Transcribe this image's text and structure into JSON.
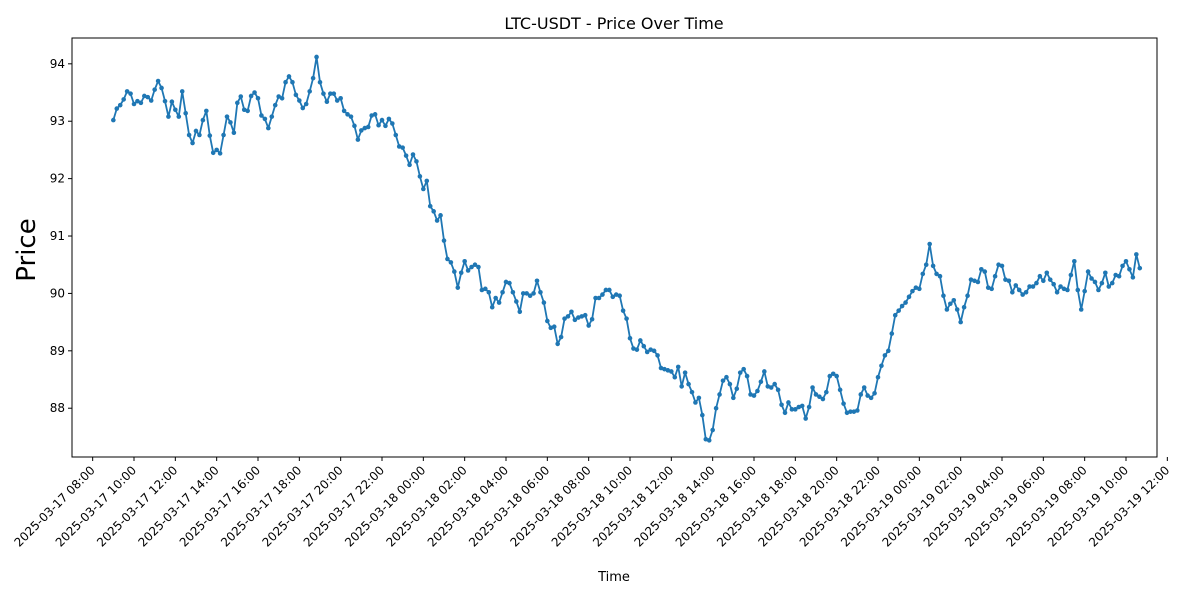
{
  "chart_data": {
    "type": "line",
    "title": "LTC-USDT - Price Over Time",
    "xlabel": "Time",
    "ylabel": "Price",
    "x_start": "2025-03-17 09:00",
    "x_interval_minutes": 10,
    "xlim": [
      "2025-03-17 07:00",
      "2025-03-19 11:30"
    ],
    "ylim": [
      87.15,
      94.45
    ],
    "x_ticks": [
      "2025-03-17 08:00",
      "2025-03-17 10:00",
      "2025-03-17 12:00",
      "2025-03-17 14:00",
      "2025-03-17 16:00",
      "2025-03-17 18:00",
      "2025-03-17 20:00",
      "2025-03-17 22:00",
      "2025-03-18 00:00",
      "2025-03-18 02:00",
      "2025-03-18 04:00",
      "2025-03-18 06:00",
      "2025-03-18 08:00",
      "2025-03-18 10:00",
      "2025-03-18 12:00",
      "2025-03-18 14:00",
      "2025-03-18 16:00",
      "2025-03-18 18:00",
      "2025-03-18 20:00",
      "2025-03-18 22:00",
      "2025-03-19 00:00",
      "2025-03-19 02:00",
      "2025-03-19 04:00",
      "2025-03-19 06:00",
      "2025-03-19 08:00",
      "2025-03-19 10:00",
      "2025-03-19 12:00"
    ],
    "y_ticks": [
      88,
      89,
      90,
      91,
      92,
      93,
      94
    ],
    "grid": false,
    "color": "#1f77b4",
    "marker": "circle",
    "series": [
      {
        "values": [
          93.02,
          93.22,
          93.28,
          93.38,
          93.52,
          93.48,
          93.3,
          93.35,
          93.32,
          93.44,
          93.42,
          93.36,
          93.55,
          93.7,
          93.58,
          93.35,
          93.08,
          93.34,
          93.2,
          93.08,
          93.52,
          93.14,
          92.76,
          92.62,
          92.83,
          92.76,
          93.02,
          93.18,
          92.75,
          92.45,
          92.5,
          92.44,
          92.76,
          93.08,
          92.98,
          92.8,
          93.32,
          93.43,
          93.2,
          93.18,
          93.44,
          93.5,
          93.4,
          93.1,
          93.04,
          92.88,
          93.08,
          93.28,
          93.43,
          93.4,
          93.68,
          93.78,
          93.68,
          93.46,
          93.36,
          93.23,
          93.3,
          93.52,
          93.75,
          94.12,
          93.68,
          93.48,
          93.34,
          93.48,
          93.48,
          93.36,
          93.4,
          93.18,
          93.12,
          93.08,
          92.92,
          92.68,
          92.84,
          92.88,
          92.9,
          93.1,
          93.12,
          92.93,
          93.02,
          92.92,
          93.04,
          92.96,
          92.76,
          92.56,
          92.54,
          92.4,
          92.24,
          92.42,
          92.3,
          92.04,
          91.82,
          91.96,
          91.52,
          91.43,
          91.27,
          91.36,
          90.92,
          90.6,
          90.54,
          90.38,
          90.1,
          90.36,
          90.56,
          90.4,
          90.46,
          90.5,
          90.46,
          90.06,
          90.08,
          90.02,
          89.76,
          89.92,
          89.84,
          90.02,
          90.2,
          90.18,
          90.02,
          89.86,
          89.68,
          90.0,
          90.0,
          89.96,
          90.0,
          90.22,
          90.02,
          89.84,
          89.52,
          89.4,
          89.42,
          89.12,
          89.24,
          89.56,
          89.6,
          89.68,
          89.54,
          89.58,
          89.6,
          89.62,
          89.44,
          89.55,
          89.92,
          89.92,
          89.98,
          90.06,
          90.06,
          89.94,
          89.98,
          89.96,
          89.7,
          89.56,
          89.22,
          89.04,
          89.02,
          89.18,
          89.08,
          88.98,
          89.02,
          89.0,
          88.92,
          88.7,
          88.68,
          88.66,
          88.64,
          88.54,
          88.72,
          88.38,
          88.62,
          88.42,
          88.28,
          88.1,
          88.18,
          87.88,
          87.46,
          87.44,
          87.62,
          88.0,
          88.24,
          88.48,
          88.54,
          88.42,
          88.18,
          88.34,
          88.62,
          88.68,
          88.56,
          88.24,
          88.22,
          88.3,
          88.46,
          88.64,
          88.38,
          88.36,
          88.42,
          88.32,
          88.06,
          87.92,
          88.1,
          87.98,
          87.98,
          88.02,
          88.04,
          87.82,
          88.02,
          88.36,
          88.24,
          88.2,
          88.16,
          88.28,
          88.56,
          88.6,
          88.56,
          88.32,
          88.08,
          87.92,
          87.94,
          87.94,
          87.96,
          88.24,
          88.36,
          88.22,
          88.18,
          88.26,
          88.54,
          88.74,
          88.92,
          89.0,
          89.3,
          89.62,
          89.7,
          89.78,
          89.84,
          89.94,
          90.04,
          90.1,
          90.08,
          90.34,
          90.5,
          90.86,
          90.48,
          90.34,
          90.3,
          89.96,
          89.72,
          89.82,
          89.88,
          89.72,
          89.5,
          89.76,
          89.96,
          90.24,
          90.22,
          90.2,
          90.42,
          90.38,
          90.1,
          90.08,
          90.3,
          90.5,
          90.48,
          90.24,
          90.22,
          90.02,
          90.14,
          90.06,
          89.98,
          90.02,
          90.12,
          90.12,
          90.18,
          90.3,
          90.22,
          90.36,
          90.24,
          90.16,
          90.02,
          90.12,
          90.08,
          90.06,
          90.32,
          90.56,
          90.06,
          89.72,
          90.04,
          90.38,
          90.26,
          90.2,
          90.06,
          90.18,
          90.36,
          90.12,
          90.18,
          90.32,
          90.3,
          90.48,
          90.56,
          90.42,
          90.28,
          90.68,
          90.44
        ]
      }
    ]
  }
}
